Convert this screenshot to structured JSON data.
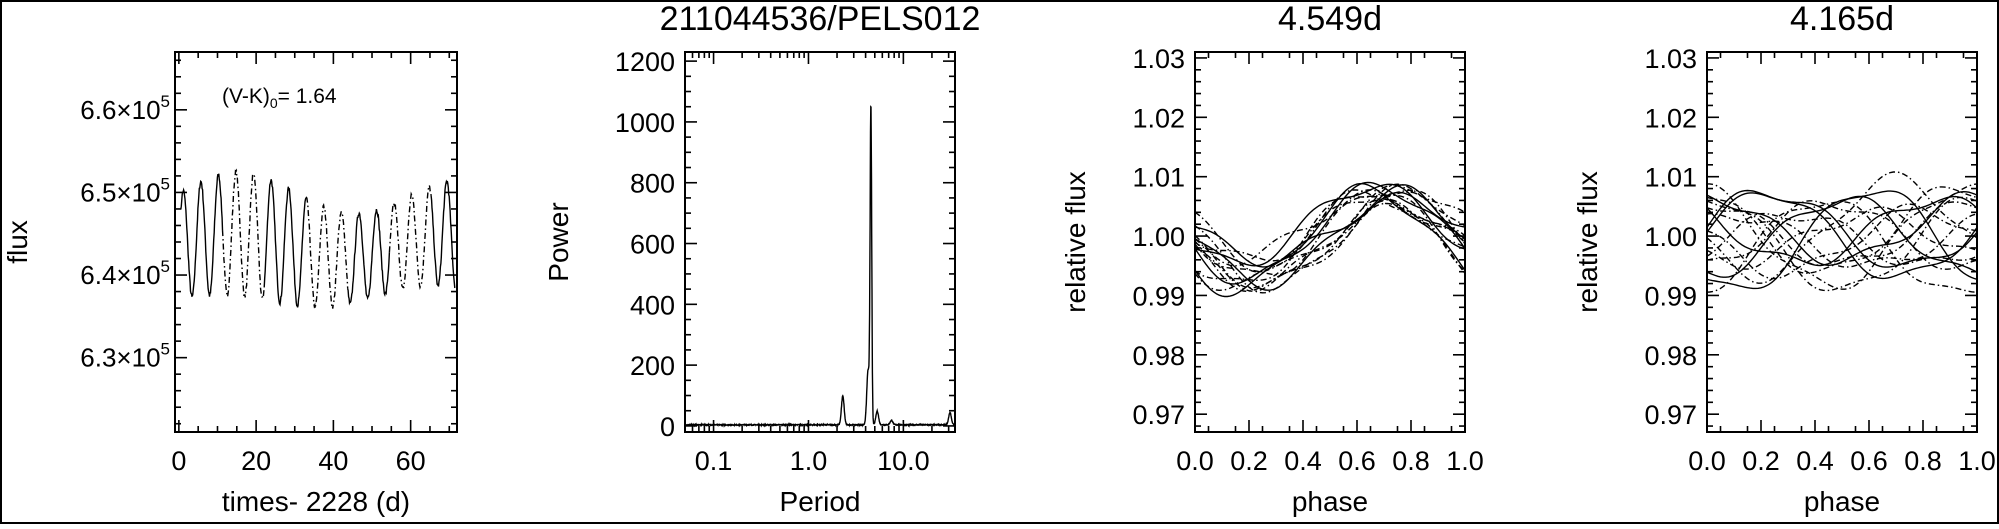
{
  "figure_title": "211044536/PELS012",
  "chart_data": [
    {
      "type": "line",
      "title": "",
      "xlabel": "times- 2228 (d)",
      "ylabel": "flux",
      "annotation": {
        "prefix": "(V-K)",
        "sub": "0",
        "suffix": "= 1.64"
      },
      "xlim": [
        -1,
        72
      ],
      "ylim": [
        621000,
        667000
      ],
      "xticks": [
        0,
        20,
        40,
        60
      ],
      "yticks": [
        {
          "value": 630000,
          "mantissa": "6.3",
          "base": "×10",
          "exp": "5"
        },
        {
          "value": 640000,
          "mantissa": "6.4",
          "base": "×10",
          "exp": "5"
        },
        {
          "value": 650000,
          "mantissa": "6.5",
          "base": "×10",
          "exp": "5"
        },
        {
          "value": 660000,
          "mantissa": "6.6",
          "base": "×10",
          "exp": "5"
        }
      ],
      "series": [
        {
          "period": 4.549,
          "mean": 643500,
          "amp": 7500,
          "x_start": 0.5,
          "x_end": 71.5
        }
      ]
    },
    {
      "type": "line",
      "title": "",
      "xlabel": "Period",
      "ylabel": "Power",
      "xscale": "log",
      "xlim": [
        0.05,
        35
      ],
      "ylim": [
        -20,
        1230
      ],
      "xticks": [
        {
          "value": 0.1,
          "label": "0.1"
        },
        {
          "value": 1,
          "label": "1.0"
        },
        {
          "value": 10,
          "label": "10.0"
        }
      ],
      "yticks": [
        0,
        200,
        400,
        600,
        800,
        1000,
        1200
      ],
      "peaks": [
        {
          "period": 2.3,
          "power": 95
        },
        {
          "period": 4.25,
          "power": 180
        },
        {
          "period": 4.549,
          "power": 1035
        },
        {
          "period": 5.3,
          "power": 45
        },
        {
          "period": 7.5,
          "power": 15
        },
        {
          "period": 31,
          "power": 40
        }
      ]
    },
    {
      "type": "line",
      "title": "4.549d",
      "xlabel": "phase",
      "ylabel": "relative flux",
      "xlim": [
        0,
        1
      ],
      "ylim": [
        0.967,
        1.031
      ],
      "xticks": [
        "0.0",
        "0.2",
        "0.4",
        "0.6",
        "0.8",
        "1.0"
      ],
      "yticks": [
        "0.97",
        "0.98",
        "0.99",
        "1.00",
        "1.01",
        "1.02",
        "1.03"
      ],
      "fold": {
        "cycles": 15,
        "amp_range": [
          0.005,
          0.009
        ],
        "peak_phase_range": [
          0.63,
          0.8
        ]
      }
    },
    {
      "type": "line",
      "title": "4.165d",
      "xlabel": "phase",
      "ylabel": "relative flux",
      "xlim": [
        0,
        1
      ],
      "ylim": [
        0.967,
        1.031
      ],
      "xticks": [
        "0.0",
        "0.2",
        "0.4",
        "0.6",
        "0.8",
        "1.0"
      ],
      "yticks": [
        "0.97",
        "0.98",
        "0.99",
        "1.00",
        "1.01",
        "1.02",
        "1.03"
      ],
      "fold": {
        "cycles": 17,
        "amp_range": [
          0.004,
          0.009
        ],
        "peak_phase_range": [
          0.0,
          1.0
        ]
      }
    }
  ]
}
